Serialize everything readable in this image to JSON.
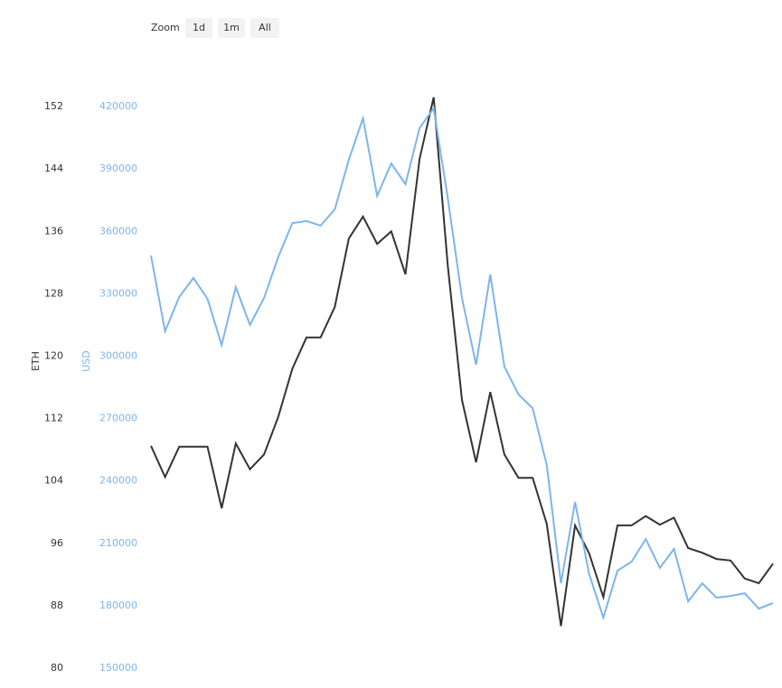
{
  "chart_data": {
    "type": "line",
    "zoom": {
      "label": "Zoom",
      "buttons": [
        "1d",
        "1m",
        "All"
      ]
    },
    "ylabel": "ETH",
    "y2label": "USD",
    "categories": [
      null,
      null,
      null,
      null,
      null,
      null,
      null,
      null,
      null,
      null,
      null,
      null,
      null,
      null,
      null,
      null,
      null,
      null,
      null,
      null,
      null,
      null,
      null,
      null,
      null,
      null,
      null,
      null,
      null,
      null,
      null,
      null,
      null,
      null,
      null,
      null,
      null,
      null,
      null,
      null,
      null,
      null,
      null,
      null,
      null
    ],
    "ylim": [
      80,
      160
    ],
    "yticks": [
      80,
      88,
      96,
      104,
      112,
      120,
      128,
      136,
      144,
      152
    ],
    "y2lim": [
      150000,
      450000
    ],
    "y2ticks": [
      150000,
      180000,
      210000,
      240000,
      270000,
      300000,
      330000,
      360000,
      390000,
      420000
    ],
    "series": [
      {
        "name": "ETH",
        "color": "#333333",
        "values": [
          108.5,
          104.5,
          108.4,
          108.4,
          108.4,
          100.5,
          108.8,
          105.5,
          107.4,
          112.2,
          118.4,
          122.4,
          122.4,
          126.3,
          135.1,
          137.9,
          134.4,
          136.0,
          130.5,
          145.3,
          153.2,
          131.5,
          114.4,
          106.4,
          115.4,
          107.4,
          104.4,
          104.4,
          98.5,
          85.4,
          98.3,
          94.7,
          89.1,
          98.3,
          98.3,
          99.5,
          98.4,
          99.3,
          95.4,
          94.8,
          94.0,
          93.8,
          91.5,
          90.9,
          93.4
        ]
      },
      {
        "name": "USD",
        "color": "#7cb5ec",
        "axis": "y2",
        "values": [
          348400,
          312000,
          328500,
          337600,
          327600,
          305400,
          333200,
          315000,
          328000,
          347600,
          364000,
          365000,
          362800,
          370600,
          394500,
          414400,
          377100,
          392700,
          382700,
          409700,
          419200,
          375800,
          328000,
          295900,
          339300,
          295000,
          281600,
          275000,
          247700,
          190800,
          229900,
          195200,
          174300,
          196900,
          201200,
          212100,
          198200,
          207300,
          182100,
          190800,
          183900,
          184700,
          186000,
          178600,
          181300
        ]
      }
    ]
  }
}
